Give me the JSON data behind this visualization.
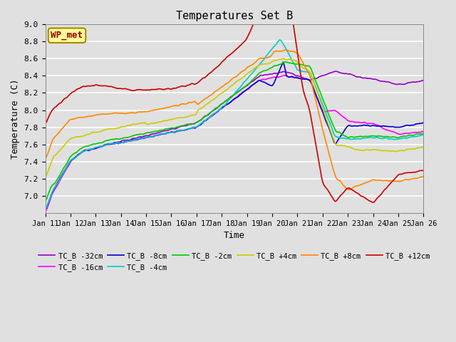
{
  "title": "Temperatures Set B",
  "xlabel": "Time",
  "ylabel": "Temperature (C)",
  "ylim": [
    6.8,
    9.0
  ],
  "yticks": [
    7.0,
    7.2,
    7.4,
    7.6,
    7.8,
    8.0,
    8.2,
    8.4,
    8.6,
    8.8,
    9.0
  ],
  "x_start_day": 11,
  "x_end_day": 26,
  "x_tick_days": [
    11,
    12,
    13,
    14,
    15,
    16,
    17,
    18,
    19,
    20,
    21,
    22,
    23,
    24,
    25,
    26
  ],
  "n_points": 3000,
  "series": [
    {
      "label": "TC_B -32cm",
      "color": "#9900CC",
      "lw": 1.2
    },
    {
      "label": "TC_B -16cm",
      "color": "#FF00FF",
      "lw": 1.2
    },
    {
      "label": "TC_B -8cm",
      "color": "#0000CC",
      "lw": 1.2
    },
    {
      "label": "TC_B -4cm",
      "color": "#00CCCC",
      "lw": 1.2
    },
    {
      "label": "TC_B -2cm",
      "color": "#00CC00",
      "lw": 1.2
    },
    {
      "label": "TC_B +4cm",
      "color": "#CCCC00",
      "lw": 1.2
    },
    {
      "label": "TC_B +8cm",
      "color": "#FF8800",
      "lw": 1.2
    },
    {
      "label": "TC_B +12cm",
      "color": "#CC0000",
      "lw": 1.2
    }
  ],
  "wp_met_label": "WP_met",
  "wp_met_bg": "#FFFF99",
  "wp_met_border": "#AA8800",
  "wp_met_color": "#990000",
  "background_color": "#E0E0E0",
  "axes_bg": "#E0E0E0",
  "grid_color": "#FFFFFF",
  "font_family": "monospace",
  "legend_ncol": 6
}
